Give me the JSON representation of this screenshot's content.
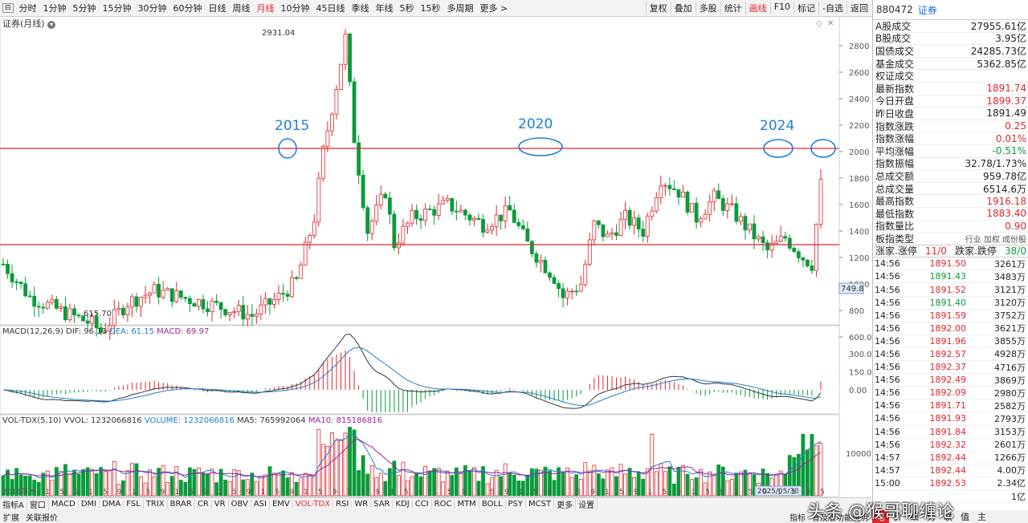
{
  "toolbar": {
    "periods": [
      "分时",
      "1分钟",
      "5分钟",
      "15分钟",
      "30分钟",
      "60分钟",
      "日线",
      "周线",
      "月线",
      "10分钟",
      "45日线",
      "季线",
      "年线",
      "5秒",
      "15秒",
      "多周期",
      "更多 >"
    ],
    "active_period": "月线",
    "right_buttons": [
      "复权",
      "叠加",
      "多股",
      "统计",
      "画线",
      "F10",
      "标记",
      "-自选",
      "返回"
    ],
    "active_right": "画线"
  },
  "chart_title": "证券(月线)",
  "annotations": {
    "high_label": "2931.04",
    "low_label": "615.70",
    "year_2015": "2015",
    "year_2020": "2020",
    "year_2024": "2024",
    "cursor_price": "749.8",
    "date_badge": "2025/05/30"
  },
  "price_axis": [
    "2800",
    "2600",
    "2400",
    "2200",
    "2000",
    "1800",
    "1600",
    "1400",
    "1200",
    "1000",
    "800",
    "600.0"
  ],
  "x_axis_labels": [
    "2010年",
    "5",
    "9",
    "1",
    "5",
    "9",
    "1",
    "5",
    "9",
    "1",
    "5",
    "9",
    "1",
    "5",
    "9",
    "1",
    "5",
    "9",
    "1",
    "5",
    "9",
    "1",
    "5",
    "9",
    "1",
    "5",
    "9",
    "1",
    "5",
    "9",
    "1",
    "5",
    "9",
    "1",
    "5",
    "9",
    "1",
    "5",
    "9",
    "1",
    "5",
    "9",
    "1",
    "5",
    "9",
    "1",
    "5",
    "9",
    "1",
    "5",
    "9",
    "1",
    "5",
    "9",
    "1",
    "5",
    "9",
    "5"
  ],
  "macd": {
    "name": "MACD(12,26,9)",
    "dif": "DIF: 96.13",
    "dea": "DEA: 61.15",
    "macd": "MACD: 69.97",
    "axis": [
      "300.0",
      "150.0",
      "0.00"
    ]
  },
  "volume": {
    "name": "VOL-TDX(5,10)",
    "vvol": "VVOL: 1232066816",
    "vol": "VOLUME: 1232066816",
    "ma5": "MA5: 765992064",
    "ma10": "MA10: 815186816",
    "axis": "10000"
  },
  "bottom_tabs": [
    "指标A",
    "窗口",
    "MACD",
    "DMI",
    "DMA",
    "FSL",
    "TRIX",
    "BRAR",
    "CR",
    "VR",
    "OBV",
    "ASI",
    "EMV",
    "VOL-TDX",
    "RSI",
    "WR",
    "SAR",
    "KDJ",
    "CCI",
    "ROC",
    "MTM",
    "BOLL",
    "PSY",
    "MCST",
    "更多",
    "设置"
  ],
  "active_bottom_tab": "VOL-TDX",
  "status_bar": [
    "扩展",
    "关联报价"
  ],
  "status_right": [
    "指标",
    "普及版功能说明"
  ],
  "watermark": "头条 @猴哥聊缠论",
  "right_panel": {
    "code": "880472",
    "name": "证券",
    "stats": [
      {
        "label": "A股成交",
        "value": "27955.61亿",
        "color": "#222"
      },
      {
        "label": "B股成交",
        "value": "3.95亿",
        "color": "#222"
      },
      {
        "label": "国债成交",
        "value": "24285.73亿",
        "color": "#222"
      },
      {
        "label": "基金成交",
        "value": "5362.85亿",
        "color": "#222"
      },
      {
        "label": "权证成交",
        "value": "",
        "color": "#222"
      },
      {
        "label": "最新指数",
        "value": "1891.74",
        "color": "#e0262c"
      },
      {
        "label": "今日开盘",
        "value": "1899.37",
        "color": "#e0262c"
      },
      {
        "label": "昨日收盘",
        "value": "1891.49",
        "color": "#222"
      },
      {
        "label": "指数涨跌",
        "value": "0.25",
        "color": "#e0262c"
      },
      {
        "label": "指数涨幅",
        "value": "0.01%",
        "color": "#e0262c"
      },
      {
        "label": "平均涨幅",
        "value": "-0.51%",
        "color": "#0a9b3a"
      },
      {
        "label": "指数振幅",
        "value": "32.78/1.73%",
        "color": "#222"
      },
      {
        "label": "总成交额",
        "value": "959.78亿",
        "color": "#222"
      },
      {
        "label": "总成交量",
        "value": "6514.6万",
        "color": "#222"
      },
      {
        "label": "最高指数",
        "value": "1916.18",
        "color": "#e0262c"
      },
      {
        "label": "最低指数",
        "value": "1883.40",
        "color": "#e0262c"
      },
      {
        "label": "指数量比",
        "value": "0.90",
        "color": "#e0262c"
      }
    ],
    "board_type_label": "板指类型",
    "board_type_value": "行业 加权 成份股",
    "updown_label": "涨家.涨停",
    "updown_value": "11/0",
    "downup_label": "跌家.跌停",
    "downup_value": "38/0",
    "ticks": [
      {
        "t": "14:56",
        "p": "1891.50",
        "c": "#e0262c",
        "v": "3261万"
      },
      {
        "t": "14:56",
        "p": "1891.43",
        "c": "#0a9b3a",
        "v": "3483万"
      },
      {
        "t": "14:56",
        "p": "1891.52",
        "c": "#e0262c",
        "v": "3121万"
      },
      {
        "t": "14:56",
        "p": "1891.40",
        "c": "#0a9b3a",
        "v": "3120万"
      },
      {
        "t": "14:56",
        "p": "1891.59",
        "c": "#e0262c",
        "v": "3752万"
      },
      {
        "t": "14:56",
        "p": "1892.00",
        "c": "#e0262c",
        "v": "3621万"
      },
      {
        "t": "14:56",
        "p": "1891.96",
        "c": "#e0262c",
        "v": "3855万"
      },
      {
        "t": "14:56",
        "p": "1892.57",
        "c": "#e0262c",
        "v": "4928万"
      },
      {
        "t": "14:56",
        "p": "1892.37",
        "c": "#e0262c",
        "v": "4716万"
      },
      {
        "t": "14:56",
        "p": "1892.49",
        "c": "#e0262c",
        "v": "3869万"
      },
      {
        "t": "14:56",
        "p": "1892.09",
        "c": "#e0262c",
        "v": "2980万"
      },
      {
        "t": "14:56",
        "p": "1891.71",
        "c": "#e0262c",
        "v": "2582万"
      },
      {
        "t": "14:56",
        "p": "1891.93",
        "c": "#e0262c",
        "v": "2793万"
      },
      {
        "t": "14:56",
        "p": "1891.84",
        "c": "#e0262c",
        "v": "3153万"
      },
      {
        "t": "14:56",
        "p": "1892.32",
        "c": "#e0262c",
        "v": "2601万"
      },
      {
        "t": "14:57",
        "p": "1892.44",
        "c": "#e0262c",
        "v": "1266万"
      },
      {
        "t": "14:57",
        "p": "1892.44",
        "c": "#e0262c",
        "v": "4.00万"
      },
      {
        "t": "15:00",
        "p": "1892.53",
        "c": "#e0262c",
        "v": "2.34亿"
      },
      {
        "t": "",
        "p": "",
        "c": "#222",
        "v": "1亿"
      }
    ],
    "bottom_tabs": [
      "笔",
      "价",
      "细",
      "势",
      "联",
      "值",
      "主"
    ]
  }
}
